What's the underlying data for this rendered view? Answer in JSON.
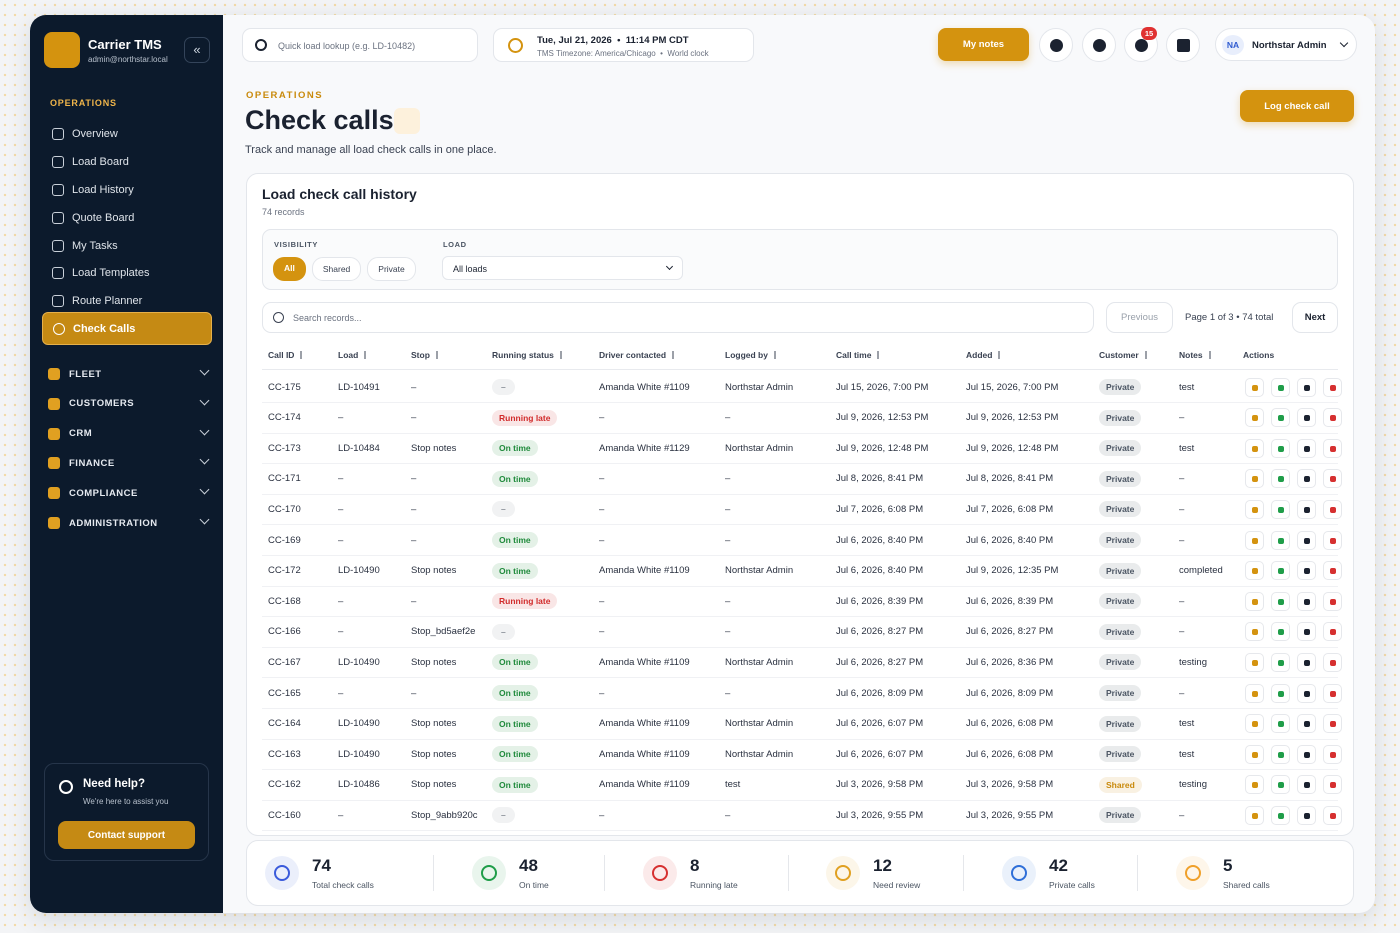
{
  "sidebar": {
    "brand": {
      "name": "Carrier TMS",
      "email": "admin@northstar.local"
    },
    "section_label": "OPERATIONS",
    "items": [
      "Overview",
      "Load Board",
      "Load History",
      "Quote Board",
      "My Tasks",
      "Load Templates",
      "Route Planner",
      "Check Calls"
    ],
    "groups": [
      "FLEET",
      "CUSTOMERS",
      "CRM",
      "FINANCE",
      "COMPLIANCE",
      "ADMINISTRATION"
    ],
    "help": {
      "title": "Need help?",
      "subtitle": "We're here to assist you",
      "button": "Contact support"
    }
  },
  "topbar": {
    "search_placeholder": "Quick load lookup (e.g. LD-10482)",
    "date": "Tue, Jul 21, 2026",
    "time": "11:14 PM CDT",
    "timezone": "TMS Timezone: America/Chicago",
    "world_clock": "World clock",
    "notes_button": "My notes",
    "notification_count": "15",
    "user_initials": "NA",
    "user_name": "Northstar Admin"
  },
  "header": {
    "eyebrow": "OPERATIONS",
    "title": "Check calls",
    "subtitle": "Track and manage all load check calls in one place.",
    "button": "Log check call"
  },
  "card": {
    "title": "Load check call history",
    "records": "74 records",
    "filters": {
      "visibility_label": "VISIBILITY",
      "visibility_options": [
        "All",
        "Shared",
        "Private"
      ],
      "load_label": "LOAD",
      "load_value": "All loads"
    },
    "search_placeholder": "Search records...",
    "pagination": {
      "previous": "Previous",
      "page": "Page 1 of 3",
      "total": "74 total",
      "next": "Next"
    }
  },
  "table": {
    "columns": [
      "Call ID",
      "Load",
      "Stop",
      "Running status",
      "Driver contacted",
      "Logged by",
      "Call time",
      "Added",
      "Customer",
      "Notes",
      "Actions"
    ],
    "rows": [
      {
        "id": "CC-175",
        "load": "LD-10491",
        "stop": "–",
        "status": {
          "text": "–",
          "color": "#8a9099"
        },
        "driver": "Amanda White #1109",
        "logged_by": "Northstar Admin",
        "call_time": "Jul 15, 2026, 7:00 PM",
        "added": "Jul 15, 2026, 7:00 PM",
        "customer": {
          "text": "Private",
          "color": "#4b5563"
        },
        "notes": "test"
      },
      {
        "id": "CC-174",
        "load": "–",
        "stop": "–",
        "status": {
          "text": "Running late",
          "color": "#d12b2b"
        },
        "driver": "–",
        "logged_by": "–",
        "call_time": "Jul 9, 2026, 12:53 PM",
        "added": "Jul 9, 2026, 12:53 PM",
        "customer": {
          "text": "Private",
          "color": "#4b5563"
        },
        "notes": "–"
      },
      {
        "id": "CC-173",
        "load": "LD-10484",
        "stop": "Stop notes",
        "status": {
          "text": "On time",
          "color": "#1f8a3b"
        },
        "driver": "Amanda White #1129",
        "logged_by": "Northstar Admin",
        "call_time": "Jul 9, 2026, 12:48 PM",
        "added": "Jul 9, 2026, 12:48 PM",
        "customer": {
          "text": "Private",
          "color": "#4b5563"
        },
        "notes": "test"
      },
      {
        "id": "CC-171",
        "load": "–",
        "stop": "–",
        "status": {
          "text": "On time",
          "color": "#1f8a3b"
        },
        "driver": "–",
        "logged_by": "–",
        "call_time": "Jul 8, 2026, 8:41 PM",
        "added": "Jul 8, 2026, 8:41 PM",
        "customer": {
          "text": "Private",
          "color": "#4b5563"
        },
        "notes": "–"
      },
      {
        "id": "CC-170",
        "load": "–",
        "stop": "–",
        "status": {
          "text": "–",
          "color": "#8a9099"
        },
        "driver": "–",
        "logged_by": "–",
        "call_time": "Jul 7, 2026, 6:08 PM",
        "added": "Jul 7, 2026, 6:08 PM",
        "customer": {
          "text": "Private",
          "color": "#4b5563"
        },
        "notes": "–"
      },
      {
        "id": "CC-169",
        "load": "–",
        "stop": "–",
        "status": {
          "text": "On time",
          "color": "#1f8a3b"
        },
        "driver": "–",
        "logged_by": "–",
        "call_time": "Jul 6, 2026, 8:40 PM",
        "added": "Jul 6, 2026, 8:40 PM",
        "customer": {
          "text": "Private",
          "color": "#4b5563"
        },
        "notes": "–"
      },
      {
        "id": "CC-172",
        "load": "LD-10490",
        "stop": "Stop notes",
        "status": {
          "text": "On time",
          "color": "#1f8a3b"
        },
        "driver": "Amanda White #1109",
        "logged_by": "Northstar Admin",
        "call_time": "Jul 6, 2026, 8:40 PM",
        "added": "Jul 9, 2026, 12:35 PM",
        "customer": {
          "text": "Private",
          "color": "#4b5563"
        },
        "notes": "completed"
      },
      {
        "id": "CC-168",
        "load": "–",
        "stop": "–",
        "status": {
          "text": "Running late",
          "color": "#d12b2b"
        },
        "driver": "–",
        "logged_by": "–",
        "call_time": "Jul 6, 2026, 8:39 PM",
        "added": "Jul 6, 2026, 8:39 PM",
        "customer": {
          "text": "Private",
          "color": "#4b5563"
        },
        "notes": "–"
      },
      {
        "id": "CC-166",
        "load": "–",
        "stop": "Stop_bd5aef2e",
        "status": {
          "text": "–",
          "color": "#8a9099"
        },
        "driver": "–",
        "logged_by": "–",
        "call_time": "Jul 6, 2026, 8:27 PM",
        "added": "Jul 6, 2026, 8:27 PM",
        "customer": {
          "text": "Private",
          "color": "#4b5563"
        },
        "notes": "–"
      },
      {
        "id": "CC-167",
        "load": "LD-10490",
        "stop": "Stop notes",
        "status": {
          "text": "On time",
          "color": "#1f8a3b"
        },
        "driver": "Amanda White #1109",
        "logged_by": "Northstar Admin",
        "call_time": "Jul 6, 2026, 8:27 PM",
        "added": "Jul 6, 2026, 8:36 PM",
        "customer": {
          "text": "Private",
          "color": "#4b5563"
        },
        "notes": "testing"
      },
      {
        "id": "CC-165",
        "load": "–",
        "stop": "–",
        "status": {
          "text": "On time",
          "color": "#1f8a3b"
        },
        "driver": "–",
        "logged_by": "–",
        "call_time": "Jul 6, 2026, 8:09 PM",
        "added": "Jul 6, 2026, 8:09 PM",
        "customer": {
          "text": "Private",
          "color": "#4b5563"
        },
        "notes": "–"
      },
      {
        "id": "CC-164",
        "load": "LD-10490",
        "stop": "Stop notes",
        "status": {
          "text": "On time",
          "color": "#1f8a3b"
        },
        "driver": "Amanda White #1109",
        "logged_by": "Northstar Admin",
        "call_time": "Jul 6, 2026, 6:07 PM",
        "added": "Jul 6, 2026, 6:08 PM",
        "customer": {
          "text": "Private",
          "color": "#4b5563"
        },
        "notes": "test"
      },
      {
        "id": "CC-163",
        "load": "LD-10490",
        "stop": "Stop notes",
        "status": {
          "text": "On time",
          "color": "#1f8a3b"
        },
        "driver": "Amanda White #1109",
        "logged_by": "Northstar Admin",
        "call_time": "Jul 6, 2026, 6:07 PM",
        "added": "Jul 6, 2026, 6:08 PM",
        "customer": {
          "text": "Private",
          "color": "#4b5563"
        },
        "notes": "test"
      },
      {
        "id": "CC-162",
        "load": "LD-10486",
        "stop": "Stop notes",
        "status": {
          "text": "On time",
          "color": "#1f8a3b"
        },
        "driver": "Amanda White #1109",
        "logged_by": "test",
        "call_time": "Jul 3, 2026, 9:58 PM",
        "added": "Jul 3, 2026, 9:58 PM",
        "customer": {
          "text": "Shared",
          "color": "#c98a0c"
        },
        "notes": "testing"
      },
      {
        "id": "CC-160",
        "load": "–",
        "stop": "Stop_9abb920c",
        "status": {
          "text": "–",
          "color": "#8a9099"
        },
        "driver": "–",
        "logged_by": "–",
        "call_time": "Jul 3, 2026, 9:55 PM",
        "added": "Jul 3, 2026, 9:55 PM",
        "customer": {
          "text": "Private",
          "color": "#4b5563"
        },
        "notes": "–"
      }
    ]
  },
  "stats": [
    {
      "value": "74",
      "label": "Total check calls",
      "color": "#3b5bdb"
    },
    {
      "value": "48",
      "label": "On time",
      "color": "#1f9d49"
    },
    {
      "value": "8",
      "label": "Running late",
      "color": "#d63030"
    },
    {
      "value": "12",
      "label": "Need review",
      "color": "#e0a021"
    },
    {
      "value": "42",
      "label": "Private calls",
      "color": "#2f6fd8"
    },
    {
      "value": "5",
      "label": "Shared calls",
      "color": "#f0a02a"
    }
  ]
}
